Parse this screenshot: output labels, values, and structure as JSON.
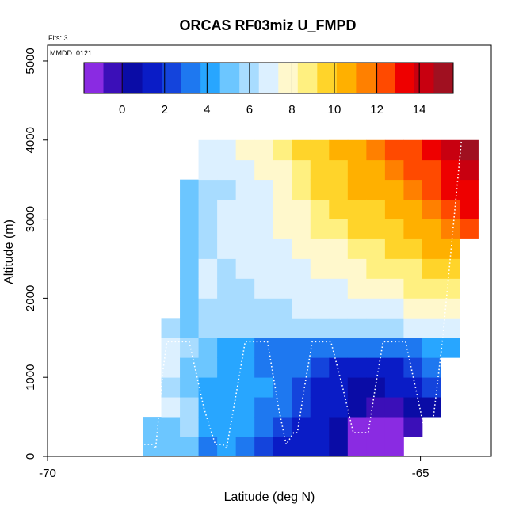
{
  "chart_data": {
    "type": "heatmap",
    "title": "ORCAS RF03miz U_FMPD",
    "xlabel": "Latitude (deg N)",
    "ylabel": "Altitude (m)",
    "xlim": [
      -70,
      -64.05
    ],
    "ylim": [
      0,
      5200
    ],
    "x_ticks": [
      -70,
      -65
    ],
    "x_tick_labels": [
      "-70",
      "-65"
    ],
    "y_ticks": [
      0,
      1000,
      2000,
      3000,
      4000,
      5000
    ],
    "y_tick_labels": [
      "0",
      "1000",
      "2000",
      "3000",
      "4000",
      "5000"
    ],
    "annotations": {
      "flights": "Flts: 3",
      "mmdd": "MMDD: 0121"
    },
    "colorbar": {
      "range": [
        -1.8,
        15.6
      ],
      "ticks": [
        0,
        2,
        4,
        6,
        8,
        10,
        12,
        14
      ],
      "tick_labels": [
        "0",
        "2",
        "4",
        "6",
        "8",
        "10",
        "12",
        "14"
      ],
      "colors": [
        "#8a2be2",
        "#3b0fb8",
        "#0a0ca6",
        "#0a1cc6",
        "#1444dc",
        "#1e78f0",
        "#28a6ff",
        "#6cc6ff",
        "#a8dcff",
        "#dcf0ff",
        "#fff8cc",
        "#fff080",
        "#ffd42a",
        "#ffb000",
        "#ff8000",
        "#ff4a00",
        "#ee0000",
        "#c80010",
        "#a01020"
      ]
    },
    "grid": false,
    "cell": {
      "x_width": 0.25,
      "y_height": 250
    },
    "columns": [
      {
        "lat": -68.6,
        "values": [
          5.0,
          5.0
        ]
      },
      {
        "lat": -68.35,
        "values": [
          5.2,
          5.5,
          6.5,
          6.3,
          6.5,
          6.5,
          6.0
        ]
      },
      {
        "lat": -68.1,
        "values": [
          5.3,
          5.8,
          6.0,
          5.0,
          5.5,
          6.0,
          5.5,
          5.5,
          5.2,
          5.3,
          5.4,
          5.5,
          5.5,
          5.5
        ]
      },
      {
        "lat": -67.85,
        "values": [
          3.4,
          3.8,
          4.5,
          4.5,
          5.0,
          5.5,
          5.8,
          5.8,
          6.5,
          6.5,
          6.2,
          6.0,
          6.0,
          6.0,
          6.5,
          6.8
        ]
      },
      {
        "lat": -67.6,
        "values": [
          3.7,
          3.8,
          4.0,
          4.2,
          4.0,
          4.2,
          6.3,
          6.0,
          6.0,
          6.2,
          6.5,
          6.5,
          6.5,
          6.3,
          6.5,
          6.8
        ]
      },
      {
        "lat": -67.35,
        "values": [
          3.2,
          3.8,
          4.2,
          4.5,
          4.3,
          3.8,
          6.0,
          6.3,
          6.3,
          6.5,
          6.7,
          6.8,
          7.0,
          7.0,
          7.2,
          7.5
        ]
      },
      {
        "lat": -67.1,
        "values": [
          2.5,
          3.2,
          3.6,
          3.8,
          3.6,
          3.4,
          6.2,
          6.3,
          6.5,
          6.7,
          6.9,
          7.0,
          7.2,
          7.3,
          7.6,
          8.0
        ]
      },
      {
        "lat": -66.85,
        "values": [
          1.8,
          2.2,
          2.8,
          3.2,
          3.4,
          3.5,
          6.2,
          6.4,
          6.7,
          6.9,
          7.2,
          7.5,
          7.7,
          7.8,
          8.2,
          8.5
        ]
      },
      {
        "lat": -66.6,
        "values": [
          1.2,
          1.6,
          1.9,
          2.2,
          2.8,
          3.3,
          6.0,
          6.6,
          6.8,
          7.2,
          7.5,
          7.8,
          8.0,
          8.4,
          9.0,
          9.5
        ]
      },
      {
        "lat": -66.35,
        "values": [
          1.0,
          1.4,
          1.6,
          1.8,
          2.1,
          2.8,
          6.1,
          6.7,
          7.0,
          7.4,
          7.8,
          8.3,
          8.7,
          9.2,
          9.5,
          10.0
        ]
      },
      {
        "lat": -66.1,
        "values": [
          0.5,
          0.8,
          1.0,
          1.2,
          1.5,
          3.0,
          6.2,
          6.8,
          7.2,
          7.8,
          8.2,
          8.7,
          9.2,
          9.6,
          10.0,
          10.5
        ]
      },
      {
        "lat": -65.85,
        "values": [
          -1.0,
          -1.2,
          0.5,
          0.7,
          1.2,
          2.8,
          6.3,
          6.9,
          7.4,
          8.0,
          8.6,
          9.2,
          9.7,
          10.2,
          10.6,
          11.0
        ]
      },
      {
        "lat": -65.6,
        "values": [
          -1.3,
          -1.3,
          -0.5,
          0.8,
          1.4,
          3.0,
          6.3,
          7.1,
          7.6,
          8.3,
          9.0,
          9.6,
          10.1,
          10.6,
          11.0,
          11.5
        ]
      },
      {
        "lat": -65.35,
        "values": [
          -1.3,
          -1.0,
          -0.3,
          1.0,
          1.6,
          3.1,
          6.4,
          7.2,
          7.9,
          8.7,
          9.4,
          10.0,
          10.5,
          11.0,
          11.5,
          12.0
        ]
      },
      {
        "lat": -65.1,
        "values": [
          null,
          -0.3,
          0.3,
          1.3,
          2.0,
          3.2,
          6.5,
          7.4,
          8.3,
          9.0,
          9.7,
          10.5,
          11.0,
          11.6,
          12.0,
          12.5
        ]
      },
      {
        "lat": -64.85,
        "values": [
          null,
          null,
          0.8,
          2.0,
          2.8,
          4.0,
          6.6,
          7.6,
          8.6,
          9.4,
          10.3,
          11.0,
          11.6,
          12.2,
          12.7,
          13.5
        ]
      },
      {
        "lat": -64.6,
        "values": [
          null,
          null,
          null,
          null,
          null,
          4.5,
          6.6,
          7.8,
          9.0,
          10.0,
          11.0,
          11.8,
          12.3,
          13.0,
          13.6,
          14.3
        ]
      },
      {
        "lat": -64.35,
        "values": [
          null,
          null,
          null,
          null,
          null,
          null,
          null,
          null,
          null,
          null,
          null,
          12.5,
          13.0,
          13.5,
          14.0,
          15.0
        ]
      }
    ],
    "flight_track": {
      "lat": [
        -68.75,
        -68.6,
        -68.55,
        -68.5,
        -68.45,
        -68.4,
        -68.3,
        -68.1,
        -67.9,
        -67.75,
        -67.65,
        -67.6,
        -67.45,
        -67.35,
        -67.3,
        -67.2,
        -67.05,
        -66.9,
        -66.8,
        -66.7,
        -66.65,
        -66.55,
        -66.45,
        -66.3,
        -66.2,
        -66.05,
        -65.9,
        -65.8,
        -65.7,
        -65.6,
        -65.5,
        -65.35,
        -65.2,
        -65.05,
        -64.95,
        -64.85,
        -64.7,
        -64.55,
        -64.45
      ],
      "alt": [
        150,
        150,
        100,
        600,
        1100,
        1450,
        1450,
        1450,
        600,
        150,
        150,
        100,
        900,
        1450,
        1450,
        1450,
        1450,
        600,
        150,
        300,
        300,
        900,
        1450,
        1450,
        1450,
        900,
        300,
        300,
        300,
        900,
        1450,
        1450,
        1450,
        800,
        350,
        300,
        1500,
        3000,
        4000
      ]
    }
  }
}
